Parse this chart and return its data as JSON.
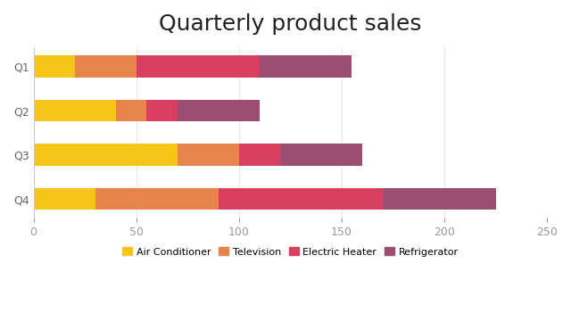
{
  "title": "Quarterly product sales",
  "categories": [
    "Q1",
    "Q2",
    "Q3",
    "Q4"
  ],
  "products": [
    "Air Conditioner",
    "Television",
    "Electric Heater",
    "Refrigerator"
  ],
  "values": {
    "Q1": [
      20,
      30,
      60,
      45
    ],
    "Q2": [
      40,
      15,
      15,
      40
    ],
    "Q3": [
      70,
      30,
      20,
      40
    ],
    "Q4": [
      30,
      60,
      80,
      55
    ]
  },
  "colors": [
    "#F5C518",
    "#E8844A",
    "#D94060",
    "#9B4E72"
  ],
  "xlim": [
    0,
    250
  ],
  "xticks": [
    0,
    50,
    100,
    150,
    200,
    250
  ],
  "background_color": "#FFFFFF",
  "title_fontsize": 18,
  "legend_fontsize": 8,
  "tick_fontsize": 9,
  "bar_height": 0.5,
  "figsize": [
    6.4,
    3.6
  ],
  "dpi": 100
}
